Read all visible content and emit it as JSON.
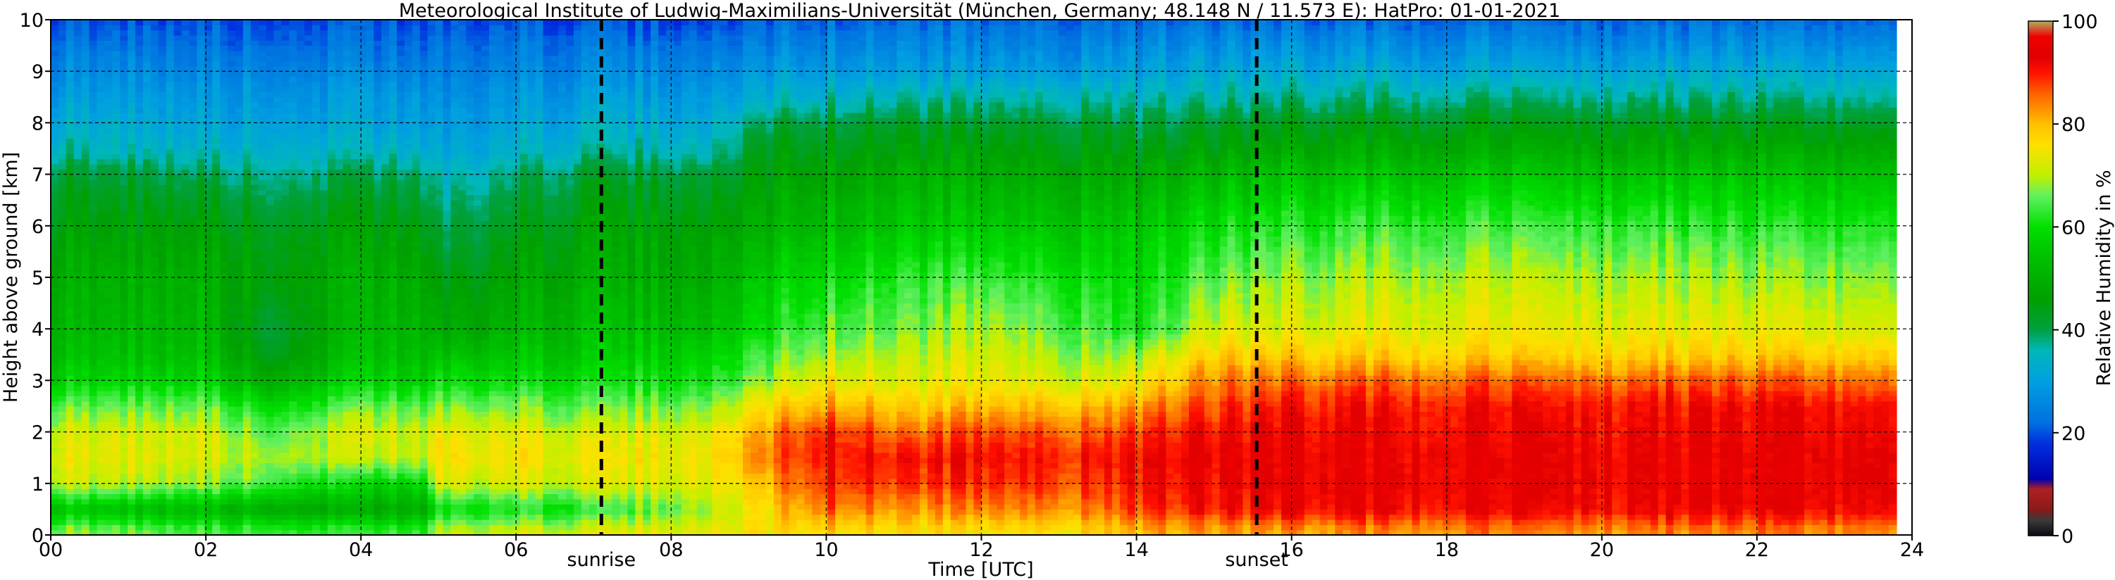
{
  "chart_data": {
    "type": "heatmap",
    "title": "Meteorological Institute of Ludwig-Maximilians-Universität (München, Germany; 48.148 N / 11.573 E):    HatPro: 01-01-2021",
    "xlabel": "Time [UTC]",
    "ylabel": "Height above ground [km]",
    "xlim": [
      0,
      24
    ],
    "ylim": [
      0,
      10
    ],
    "x_ticks": [
      "00",
      "02",
      "04",
      "06",
      "08",
      "10",
      "12",
      "14",
      "16",
      "18",
      "20",
      "22",
      "24"
    ],
    "y_ticks": [
      "0",
      "1",
      "2",
      "3",
      "4",
      "5",
      "6",
      "7",
      "8",
      "9",
      "10"
    ],
    "grid": true,
    "colorbar": {
      "label": "Relative Humidity in %",
      "range": [
        0,
        100
      ],
      "ticks": [
        "0",
        "20",
        "40",
        "60",
        "80",
        "100"
      ]
    },
    "annotations": [
      {
        "label": "sunrise",
        "x": 7.1
      },
      {
        "label": "sunset",
        "x": 15.55
      }
    ],
    "heights_km": [
      0.1,
      0.5,
      1,
      1.5,
      2,
      2.5,
      3,
      3.5,
      4,
      5,
      6,
      7,
      7.5,
      8,
      8.5,
      9,
      9.5,
      10
    ],
    "columns": [
      {
        "t": 0,
        "rh": [
          68,
          55,
          72,
          74,
          72,
          66,
          58,
          54,
          52,
          50,
          46,
          42,
          36,
          33,
          30,
          27,
          24,
          20
        ]
      },
      {
        "t": 2,
        "rh": [
          64,
          52,
          68,
          72,
          72,
          66,
          58,
          54,
          52,
          50,
          46,
          40,
          34,
          31,
          29,
          26,
          23,
          20
        ]
      },
      {
        "t": 2.8,
        "rh": [
          64,
          50,
          65,
          70,
          66,
          60,
          50,
          44,
          42,
          46,
          44,
          38,
          34,
          31,
          29,
          26,
          23,
          20
        ]
      },
      {
        "t": 4,
        "rh": [
          62,
          48,
          58,
          70,
          72,
          66,
          58,
          54,
          52,
          50,
          46,
          40,
          34,
          31,
          29,
          26,
          23,
          20
        ]
      },
      {
        "t": 4.8,
        "rh": [
          64,
          50,
          60,
          72,
          72,
          66,
          58,
          54,
          52,
          50,
          46,
          40,
          34,
          31,
          29,
          26,
          23,
          20
        ]
      },
      {
        "t": 5,
        "rh": [
          70,
          60,
          72,
          76,
          74,
          68,
          60,
          54,
          48,
          44,
          40,
          35,
          31,
          29,
          27,
          25,
          23,
          20
        ]
      },
      {
        "t": 7,
        "rh": [
          72,
          62,
          72,
          74,
          72,
          66,
          60,
          56,
          54,
          50,
          47,
          42,
          36,
          33,
          30,
          27,
          24,
          20
        ]
      },
      {
        "t": 8.5,
        "rh": [
          74,
          70,
          74,
          76,
          74,
          68,
          62,
          58,
          54,
          50,
          47,
          42,
          36,
          33,
          30,
          27,
          24,
          20
        ]
      },
      {
        "t": 9.2,
        "rh": [
          76,
          76,
          80,
          84,
          82,
          76,
          68,
          64,
          60,
          56,
          50,
          46,
          44,
          40,
          33,
          29,
          25,
          21
        ]
      },
      {
        "t": 10,
        "rh": [
          78,
          86,
          90,
          92,
          91,
          82,
          75,
          70,
          66,
          60,
          54,
          48,
          45,
          42,
          35,
          30,
          26,
          22
        ]
      },
      {
        "t": 11,
        "rh": [
          76,
          82,
          88,
          90,
          84,
          78,
          72,
          70,
          66,
          62,
          55,
          50,
          46,
          42,
          36,
          30,
          26,
          22
        ]
      },
      {
        "t": 12,
        "rh": [
          76,
          84,
          89,
          91,
          88,
          80,
          74,
          72,
          70,
          64,
          56,
          50,
          46,
          42,
          36,
          30,
          26,
          22
        ]
      },
      {
        "t": 13.5,
        "rh": [
          78,
          84,
          88,
          90,
          86,
          80,
          72,
          68,
          64,
          60,
          55,
          48,
          45,
          42,
          36,
          30,
          26,
          22
        ]
      },
      {
        "t": 14,
        "rh": [
          80,
          88,
          90,
          91,
          88,
          82,
          74,
          68,
          60,
          58,
          55,
          48,
          44,
          40,
          35,
          30,
          26,
          22
        ]
      },
      {
        "t": 15,
        "rh": [
          82,
          90,
          92,
          93,
          91,
          88,
          84,
          78,
          72,
          66,
          60,
          52,
          46,
          42,
          36,
          31,
          27,
          22
        ]
      },
      {
        "t": 16,
        "rh": [
          82,
          92,
          93,
          93,
          92,
          90,
          85,
          78,
          72,
          68,
          62,
          54,
          48,
          43,
          37,
          32,
          27,
          22
        ]
      },
      {
        "t": 18,
        "rh": [
          84,
          92,
          93,
          93,
          92,
          91,
          86,
          78,
          74,
          70,
          64,
          55,
          49,
          44,
          38,
          32,
          27,
          22
        ]
      },
      {
        "t": 20,
        "rh": [
          84,
          92,
          93,
          93,
          92,
          91,
          86,
          78,
          74,
          70,
          64,
          55,
          49,
          44,
          38,
          32,
          27,
          22
        ]
      },
      {
        "t": 22,
        "rh": [
          84,
          92,
          93,
          93,
          92,
          91,
          86,
          78,
          73,
          68,
          62,
          54,
          48,
          43,
          37,
          32,
          27,
          22
        ]
      },
      {
        "t": 23.7,
        "rh": [
          84,
          92,
          93,
          93,
          92,
          91,
          85,
          78,
          72,
          68,
          62,
          54,
          48,
          43,
          37,
          32,
          27,
          22
        ]
      }
    ],
    "data_end_time": 23.8,
    "colormap": [
      [
        0,
        "#0a0a14"
      ],
      [
        3,
        "#3a3a3a"
      ],
      [
        5,
        "#8a1a1a"
      ],
      [
        9,
        "#b02020"
      ],
      [
        11,
        "#0000b0"
      ],
      [
        18,
        "#0030e0"
      ],
      [
        22,
        "#0070e0"
      ],
      [
        30,
        "#00a0e0"
      ],
      [
        36,
        "#00b8b8"
      ],
      [
        40,
        "#00a040"
      ],
      [
        46,
        "#00a000"
      ],
      [
        54,
        "#00c000"
      ],
      [
        60,
        "#00e000"
      ],
      [
        66,
        "#60f060"
      ],
      [
        70,
        "#c0f000"
      ],
      [
        76,
        "#ffe000"
      ],
      [
        80,
        "#ffc000"
      ],
      [
        86,
        "#ff6000"
      ],
      [
        90,
        "#ff1000"
      ],
      [
        93,
        "#e00000"
      ],
      [
        97,
        "#f00000"
      ],
      [
        100,
        "#b0b060"
      ]
    ]
  }
}
